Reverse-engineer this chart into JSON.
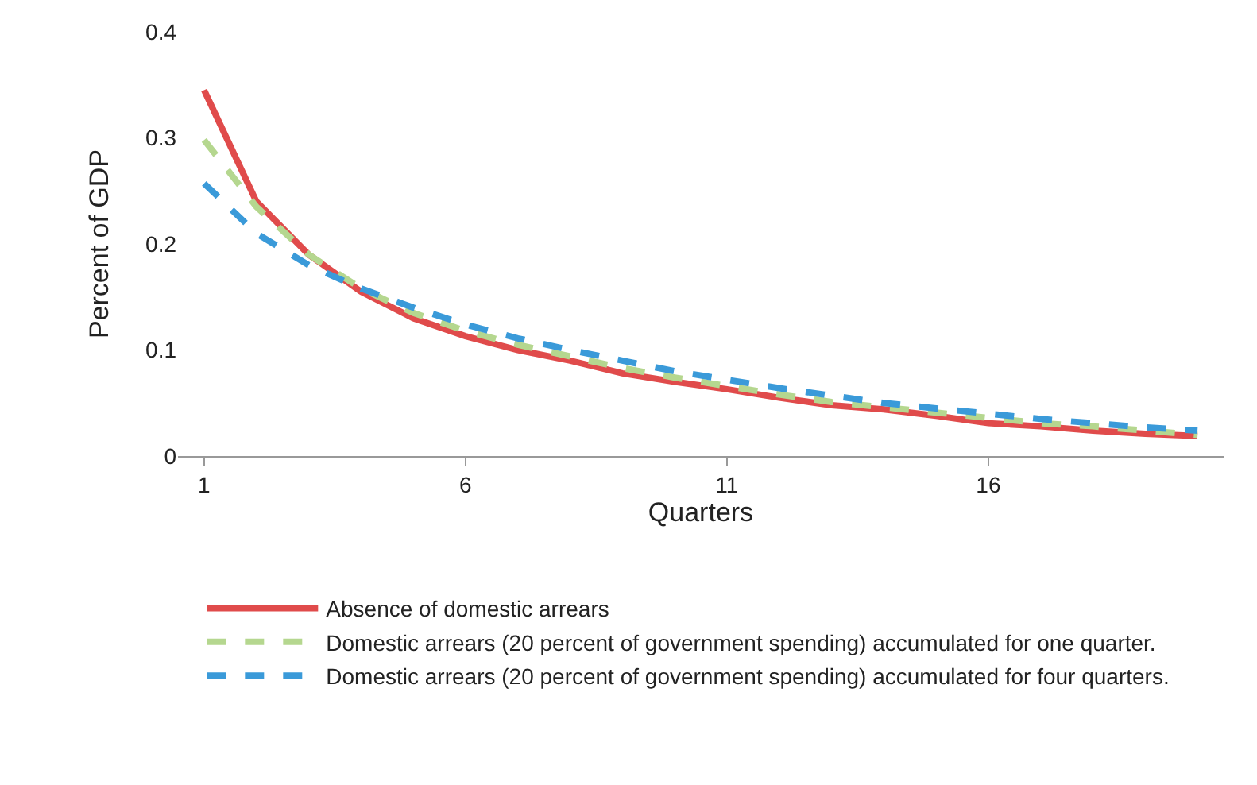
{
  "chart_data": {
    "type": "line",
    "xlabel": "Quarters",
    "ylabel": "Percent of GDP",
    "x": [
      1,
      2,
      3,
      4,
      5,
      6,
      7,
      8,
      9,
      10,
      11,
      12,
      13,
      14,
      15,
      16,
      17,
      18,
      19,
      20
    ],
    "xlim": [
      0.5,
      20.5
    ],
    "xticks": [
      1,
      6,
      11,
      16
    ],
    "ylim": [
      0,
      0.4
    ],
    "yticks": [
      0,
      0.1,
      0.2,
      0.3,
      0.4
    ],
    "grid": false,
    "legend": "bottom",
    "series": [
      {
        "name": "Absence of domestic arrears",
        "color": "#e04b4b",
        "line_style": "solid",
        "values": [
          0.345,
          0.24,
          0.19,
          0.155,
          0.13,
          0.113,
          0.1,
          0.09,
          0.078,
          0.07,
          0.063,
          0.055,
          0.048,
          0.044,
          0.038,
          0.031,
          0.028,
          0.024,
          0.021,
          0.019
        ]
      },
      {
        "name": "Domestic arrears (20 percent of government spending) accumulated for one quarter.",
        "color": "#b5d78f",
        "line_style": "dashed",
        "values": [
          0.298,
          0.235,
          0.19,
          0.158,
          0.135,
          0.118,
          0.105,
          0.094,
          0.083,
          0.074,
          0.066,
          0.058,
          0.051,
          0.046,
          0.041,
          0.036,
          0.031,
          0.028,
          0.024,
          0.02
        ]
      },
      {
        "name": "Domestic arrears (20 percent of government spending) accumulated for four quarters.",
        "color": "#3a9ad9",
        "line_style": "dashed",
        "values": [
          0.257,
          0.21,
          0.18,
          0.158,
          0.14,
          0.124,
          0.111,
          0.1,
          0.09,
          0.08,
          0.072,
          0.064,
          0.057,
          0.05,
          0.045,
          0.04,
          0.035,
          0.031,
          0.027,
          0.024
        ]
      }
    ]
  }
}
